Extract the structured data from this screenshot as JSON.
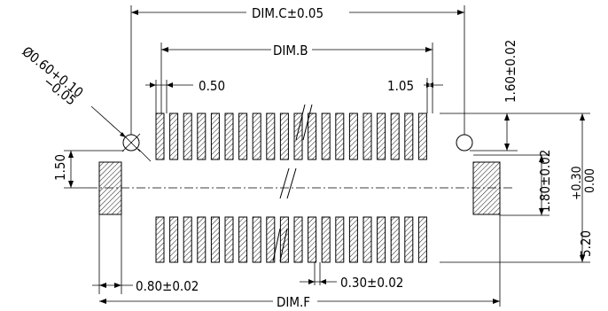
{
  "labels": {
    "dim_c": "DIM.C±0.05",
    "dim_b": "DIM.B",
    "dim_f": "DIM.F",
    "pitch": "0.50",
    "offset": "1.05",
    "hole_dia_line1": "Ø0.60+0.10",
    "hole_dia_line2": "−0.05",
    "hole_offset": "1.60±0.02",
    "pad_height": "1.80±0.02",
    "total_height_main": "5.20",
    "total_height_plus": "+0.30",
    "total_height_minus": "0.00",
    "left_offset": "1.50",
    "pad_width": "0.80±0.02",
    "pin_width": "0.30±0.02"
  },
  "pins_per_row": 20
}
